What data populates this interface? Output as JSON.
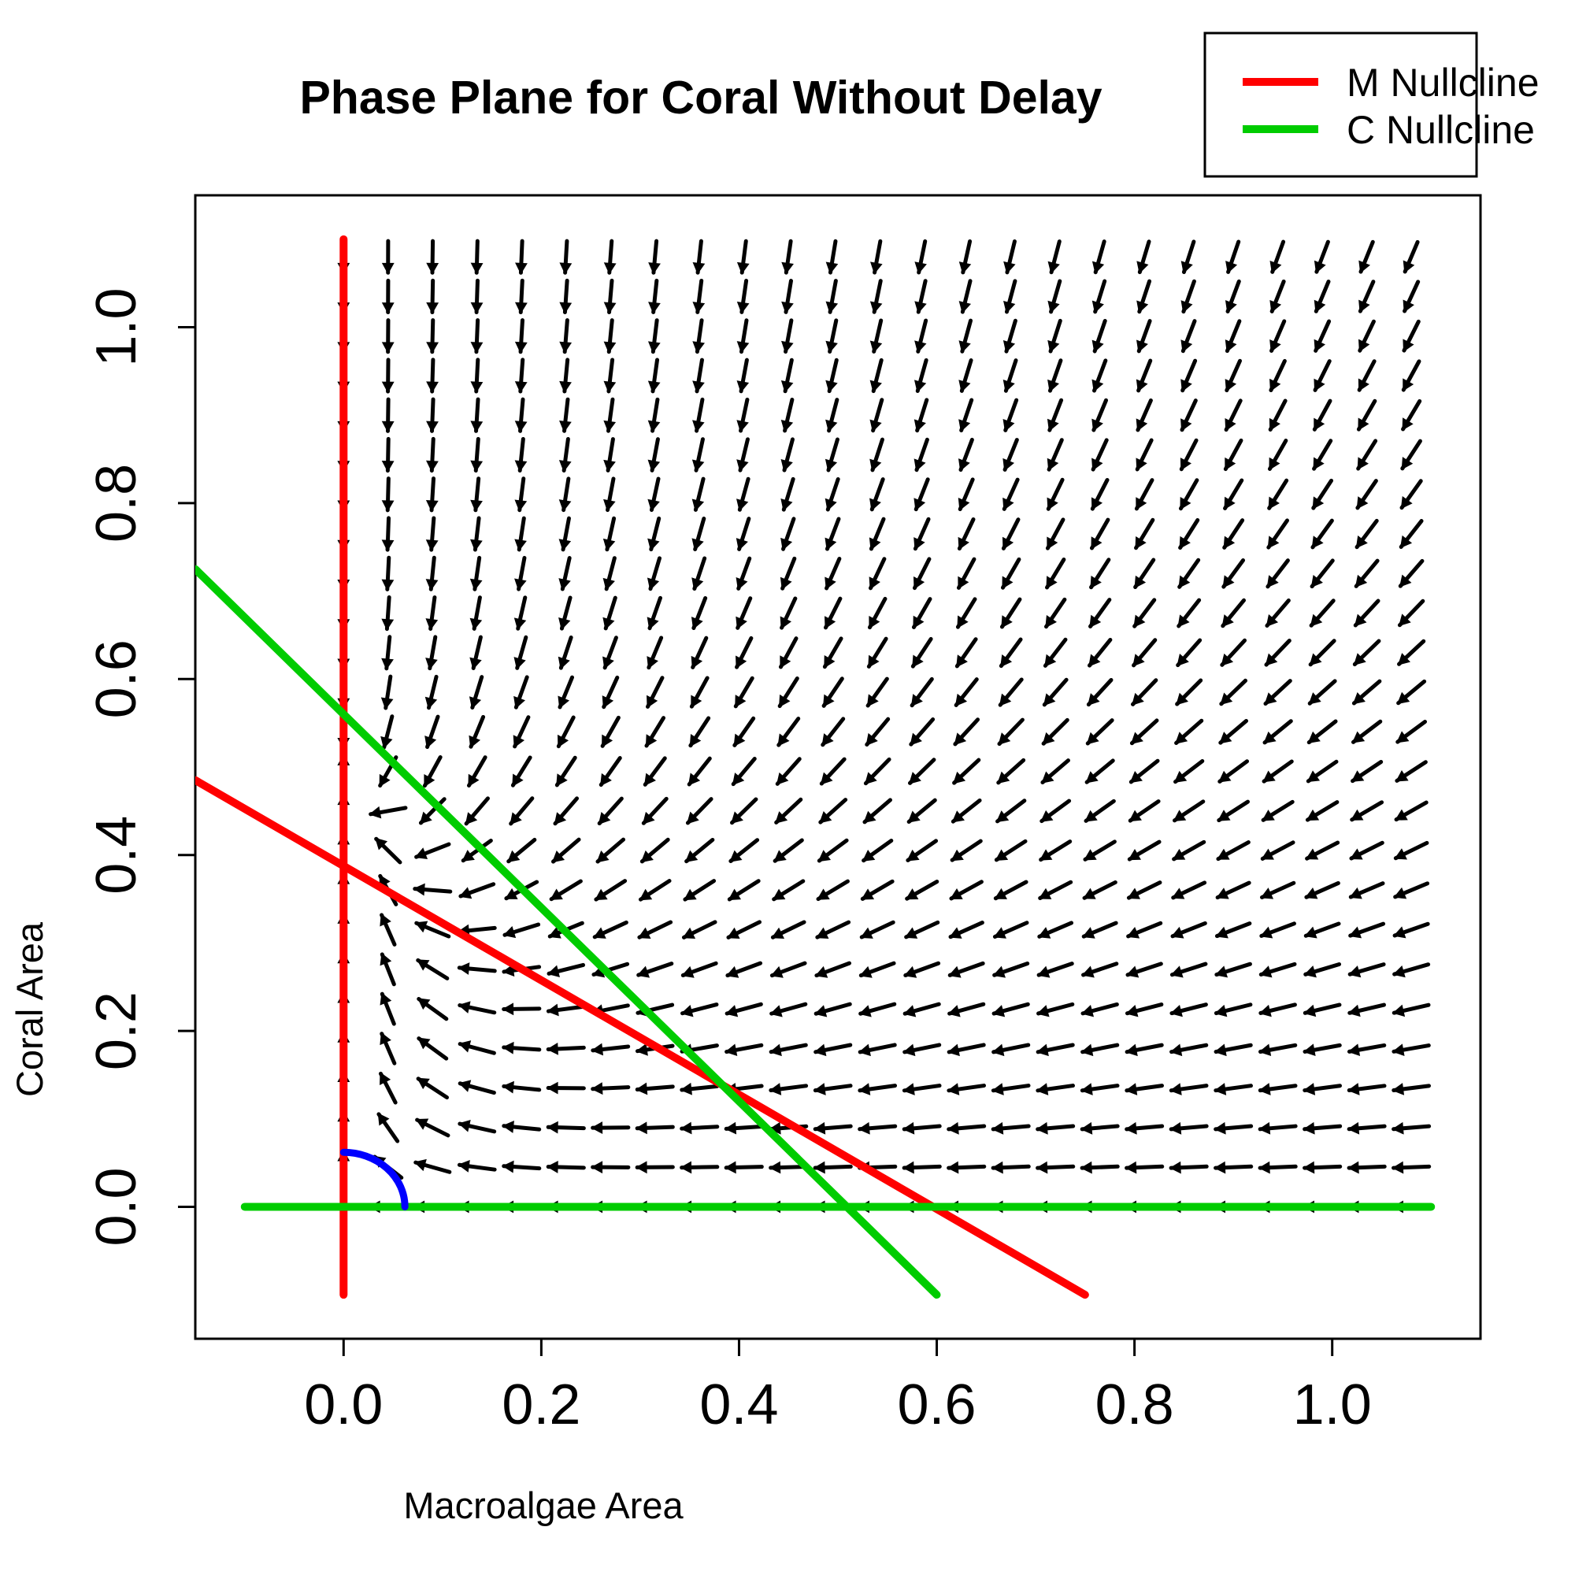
{
  "chart_data": {
    "type": "line",
    "title": "Phase Plane for Coral Without Delay",
    "xlabel": "Macroalgae Area",
    "ylabel": "Coral Area",
    "xlim": [
      -0.15,
      1.15
    ],
    "ylim": [
      -0.15,
      1.15
    ],
    "xticks": [
      0.0,
      0.2,
      0.4,
      0.6,
      0.8,
      1.0
    ],
    "yticks": [
      0.0,
      0.2,
      0.4,
      0.6,
      0.8,
      1.0
    ],
    "x_tick_labels": [
      "0.0",
      "0.2",
      "0.4",
      "0.6",
      "0.8",
      "1.0"
    ],
    "y_tick_labels": [
      "0.0",
      "0.2",
      "0.4",
      "0.6",
      "0.8",
      "1.0"
    ],
    "grid": false,
    "legend_position": "top-right",
    "colors": {
      "m_nullcline": "#ff0000",
      "c_nullcline": "#00cc00",
      "arc": "#0000ff",
      "field": "#000000"
    },
    "series": [
      {
        "name": "M Nullcline",
        "color": "#ff0000",
        "segments": [
          {
            "x": [
              0.0,
              0.0
            ],
            "y": [
              -0.1,
              1.1
            ]
          },
          {
            "x": [
              -0.15,
              0.75
            ],
            "y": [
              0.485,
              -0.1
            ]
          }
        ]
      },
      {
        "name": "C Nullcline",
        "color": "#00cc00",
        "segments": [
          {
            "x": [
              -0.15,
              0.6
            ],
            "y": [
              0.725,
              -0.1
            ]
          },
          {
            "x": [
              -0.1,
              1.1
            ],
            "y": [
              0.0,
              0.0
            ]
          }
        ]
      }
    ],
    "arc": {
      "center": [
        0.0,
        0.0
      ],
      "radius": 0.062,
      "color": "#0000ff"
    },
    "vector_field": {
      "grid_x_start": 0.0,
      "grid_x_step": 0.045,
      "grid_x_count": 25,
      "grid_y_start": 0.0,
      "grid_y_step": 0.045,
      "grid_y_count": 25,
      "arrow_length": 0.036
    }
  }
}
